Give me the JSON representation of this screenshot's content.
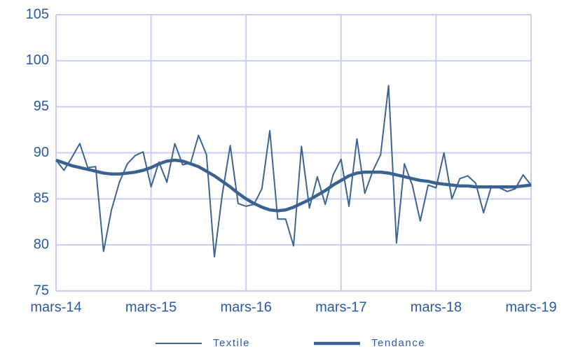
{
  "chart_data": {
    "type": "line",
    "categories": [
      "mars-14",
      null,
      null,
      null,
      null,
      null,
      null,
      null,
      null,
      null,
      null,
      null,
      "mars-15",
      null,
      null,
      null,
      null,
      null,
      null,
      null,
      null,
      null,
      null,
      null,
      "mars-16",
      null,
      null,
      null,
      null,
      null,
      null,
      null,
      null,
      null,
      null,
      null,
      "mars-17",
      null,
      null,
      null,
      null,
      null,
      null,
      null,
      null,
      null,
      null,
      null,
      "mars-18",
      null,
      null,
      null,
      null,
      null,
      null,
      null,
      null,
      null,
      null,
      null,
      "mars-19"
    ],
    "series": [
      {
        "name": "Textile",
        "color": "#3d6592",
        "values": [
          89.2,
          88.1,
          89.5,
          91.0,
          88.4,
          88.5,
          79.3,
          83.8,
          86.8,
          88.8,
          89.7,
          90.1,
          86.3,
          89.0,
          86.8,
          91.0,
          88.7,
          88.9,
          91.9,
          89.8,
          78.7,
          85.5,
          90.8,
          84.5,
          84.2,
          84.4,
          86.1,
          92.4,
          82.8,
          82.8,
          79.9,
          90.7,
          84.0,
          87.4,
          84.4,
          87.6,
          89.3,
          84.2,
          91.5,
          85.6,
          88.0,
          89.8,
          97.3,
          80.2,
          88.8,
          86.5,
          82.6,
          86.5,
          86.2,
          90.0,
          85.0,
          87.2,
          87.5,
          86.7,
          83.5,
          86.4,
          86.2,
          85.8,
          86.1,
          87.6,
          86.5
        ]
      },
      {
        "name": "Tendance",
        "color": "#3a6290",
        "values": [
          89.2,
          88.9,
          88.6,
          88.4,
          88.2,
          88.0,
          87.8,
          87.7,
          87.7,
          87.8,
          87.9,
          88.1,
          88.4,
          88.8,
          89.1,
          89.2,
          89.1,
          88.8,
          88.5,
          88.0,
          87.5,
          86.9,
          86.3,
          85.6,
          85.0,
          84.5,
          84.1,
          83.8,
          83.7,
          83.8,
          84.1,
          84.5,
          84.9,
          85.4,
          85.9,
          86.5,
          87.0,
          87.5,
          87.8,
          87.9,
          87.9,
          87.9,
          87.8,
          87.6,
          87.4,
          87.2,
          87.0,
          86.9,
          86.7,
          86.6,
          86.5,
          86.4,
          86.4,
          86.3,
          86.3,
          86.3,
          86.3,
          86.3,
          86.3,
          86.4,
          86.5
        ]
      }
    ],
    "ylim": [
      75,
      105
    ],
    "yticks": [
      75,
      80,
      85,
      90,
      95,
      100,
      105
    ],
    "grid": true,
    "legend": "bottom"
  }
}
